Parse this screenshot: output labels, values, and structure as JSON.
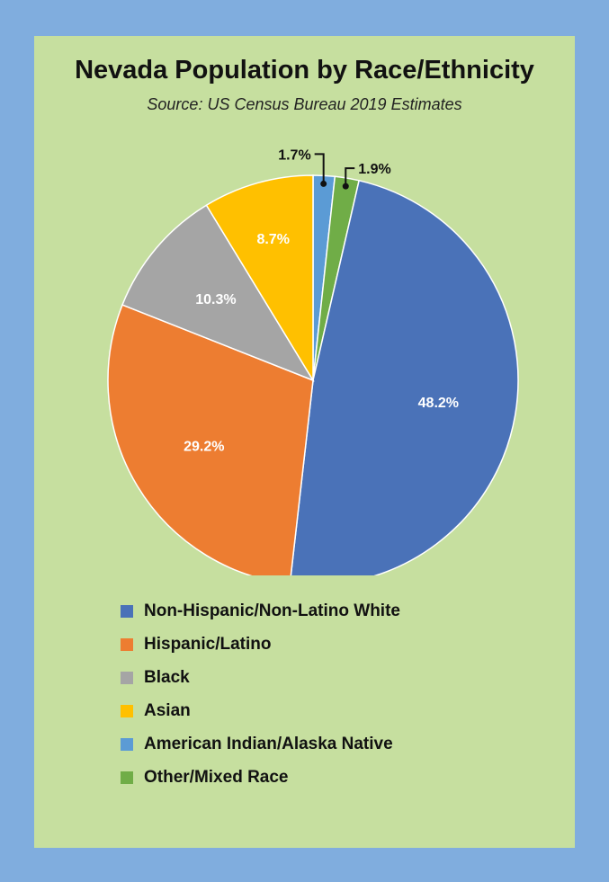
{
  "chart_data": {
    "type": "pie",
    "title": "Nevada Population by Race/Ethnicity",
    "subtitle": "Source: US Census Bureau 2019 Estimates",
    "legend_position": "bottom",
    "slices": [
      {
        "name": "Non-Hispanic/Non-Latino White",
        "value": 48.2,
        "label": "48.2%",
        "color": "#4A72B8"
      },
      {
        "name": "Hispanic/Latino",
        "value": 29.2,
        "label": "29.2%",
        "color": "#ED7D31"
      },
      {
        "name": "Black",
        "value": 10.3,
        "label": "10.3%",
        "color": "#A5A5A5"
      },
      {
        "name": "Asian",
        "value": 8.7,
        "label": "8.7%",
        "color": "#FFC000"
      },
      {
        "name": "American Indian/Alaska Native",
        "value": 1.7,
        "label": "1.7%",
        "color": "#5B9BD5"
      },
      {
        "name": "Other/Mixed Race",
        "value": 1.9,
        "label": "1.9%",
        "color": "#70AD47"
      }
    ]
  }
}
